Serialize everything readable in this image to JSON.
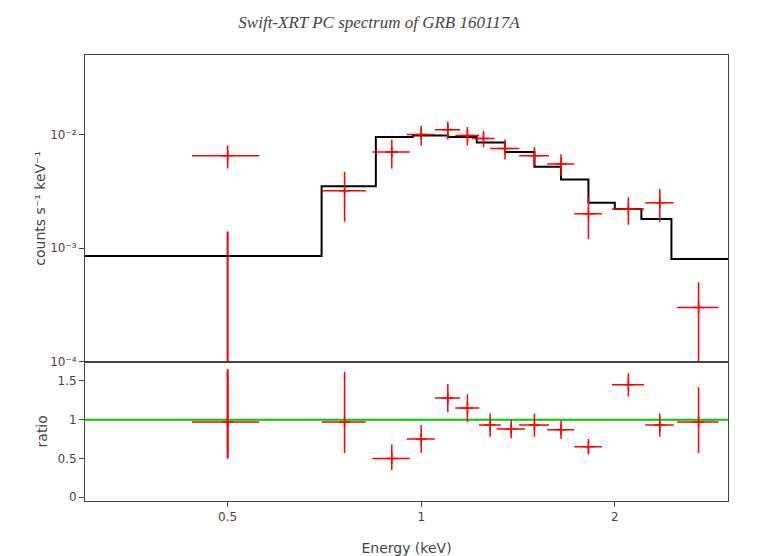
{
  "chart_data": [
    {
      "type": "scatter",
      "title": "Swift-XRT PC spectrum of GRB 160117A",
      "ylabel": "counts s⁻¹ keV⁻¹",
      "log": true,
      "xlim": [
        0.3,
        3.0
      ],
      "ylim": [
        0.0001,
        0.05
      ],
      "yticks": [
        {
          "value": 0.0001,
          "label": "10⁻⁴"
        },
        {
          "value": 0.001,
          "label": "10⁻³"
        },
        {
          "value": 0.01,
          "label": "10⁻²"
        }
      ],
      "tick_labels": "y",
      "grid": false,
      "series": [
        {
          "type": "line",
          "color": "#000000",
          "x": [
            0.3,
            0.5,
            0.5,
            0.7,
            0.7,
            0.85,
            0.85,
            0.97,
            0.97,
            1.1,
            1.1,
            1.22,
            1.22,
            1.35,
            1.35,
            1.5,
            1.5,
            1.65,
            1.65,
            1.82,
            1.82,
            2.0,
            2.0,
            2.2,
            2.2,
            2.45,
            2.45,
            3.0
          ],
          "values": [
            0.00085,
            0.00085,
            0.00085,
            0.00085,
            0.0035,
            0.0035,
            0.0095,
            0.0095,
            0.0098,
            0.0098,
            0.0095,
            0.0095,
            0.0085,
            0.0085,
            0.007,
            0.007,
            0.0052,
            0.0052,
            0.004,
            0.004,
            0.0025,
            0.0025,
            0.0022,
            0.0022,
            0.0018,
            0.0018,
            0.0008,
            0.0008
          ]
        },
        {
          "type": "scatter",
          "marker": "cross",
          "color": "#ff0000",
          "x": [
            0.5,
            0.76,
            0.9,
            1.0,
            1.1,
            1.18,
            1.25,
            1.35,
            1.5,
            1.65,
            1.82,
            2.1,
            2.35,
            2.7
          ],
          "values": [
            0.0065,
            0.0032,
            0.007,
            0.01,
            0.011,
            0.0098,
            0.0092,
            0.0075,
            0.0065,
            0.0055,
            0.002,
            0.0022,
            0.0025,
            0.0003
          ],
          "xerr": [
            0.06,
            0.06,
            0.06,
            0.05,
            0.05,
            0.05,
            0.05,
            0.07,
            0.08,
            0.08,
            0.09,
            0.12,
            0.12,
            0.2
          ],
          "yerr_lo": [
            0.0015,
            0.0015,
            0.002,
            0.002,
            0.002,
            0.0018,
            0.0015,
            0.0015,
            0.0012,
            0.0012,
            0.0008,
            0.0006,
            0.0008,
            0.0002
          ],
          "yerr_hi": [
            0.0015,
            0.0015,
            0.002,
            0.002,
            0.002,
            0.0018,
            0.0015,
            0.0015,
            0.0012,
            0.0012,
            0.0008,
            0.0006,
            0.0008,
            0.0002
          ]
        },
        {
          "type": "line",
          "color": "#ff0000",
          "x": [
            0.5,
            0.5
          ],
          "values": [
            0.0001,
            0.0014
          ]
        }
      ]
    },
    {
      "type": "scatter",
      "xlabel": "Energy (keV)",
      "ylabel": "ratio",
      "log": "x",
      "xlim": [
        0.3,
        3.0
      ],
      "ylim": [
        -0.05,
        1.75
      ],
      "xticks": [
        0.5,
        1,
        2
      ],
      "yticks": [
        0,
        0.5,
        1,
        1.5
      ],
      "grid": false,
      "hlines": [
        {
          "y": 1.0,
          "color": "#00cc00"
        }
      ],
      "series": [
        {
          "type": "scatter",
          "marker": "cross",
          "color": "#ff0000",
          "x": [
            0.5,
            0.76,
            0.9,
            1.0,
            1.1,
            1.18,
            1.28,
            1.38,
            1.5,
            1.65,
            1.82,
            2.1,
            2.35,
            2.7
          ],
          "values": [
            0.97,
            0.97,
            0.5,
            0.75,
            1.28,
            1.15,
            0.93,
            0.88,
            0.93,
            0.87,
            0.65,
            1.45,
            0.93,
            0.97
          ],
          "xerr": [
            0.06,
            0.06,
            0.06,
            0.05,
            0.05,
            0.05,
            0.05,
            0.07,
            0.08,
            0.08,
            0.09,
            0.12,
            0.12,
            0.2
          ],
          "yerr_lo": [
            0.4,
            0.4,
            0.15,
            0.18,
            0.18,
            0.18,
            0.15,
            0.12,
            0.15,
            0.12,
            0.1,
            0.15,
            0.15,
            0.4
          ],
          "yerr_hi": [
            0.65,
            0.65,
            0.18,
            0.18,
            0.18,
            0.18,
            0.15,
            0.12,
            0.15,
            0.12,
            0.1,
            0.15,
            0.15,
            0.45
          ]
        },
        {
          "type": "line",
          "color": "#ff0000",
          "x": [
            0.5,
            0.5
          ],
          "values": [
            0.497,
            1.65
          ]
        }
      ]
    }
  ]
}
